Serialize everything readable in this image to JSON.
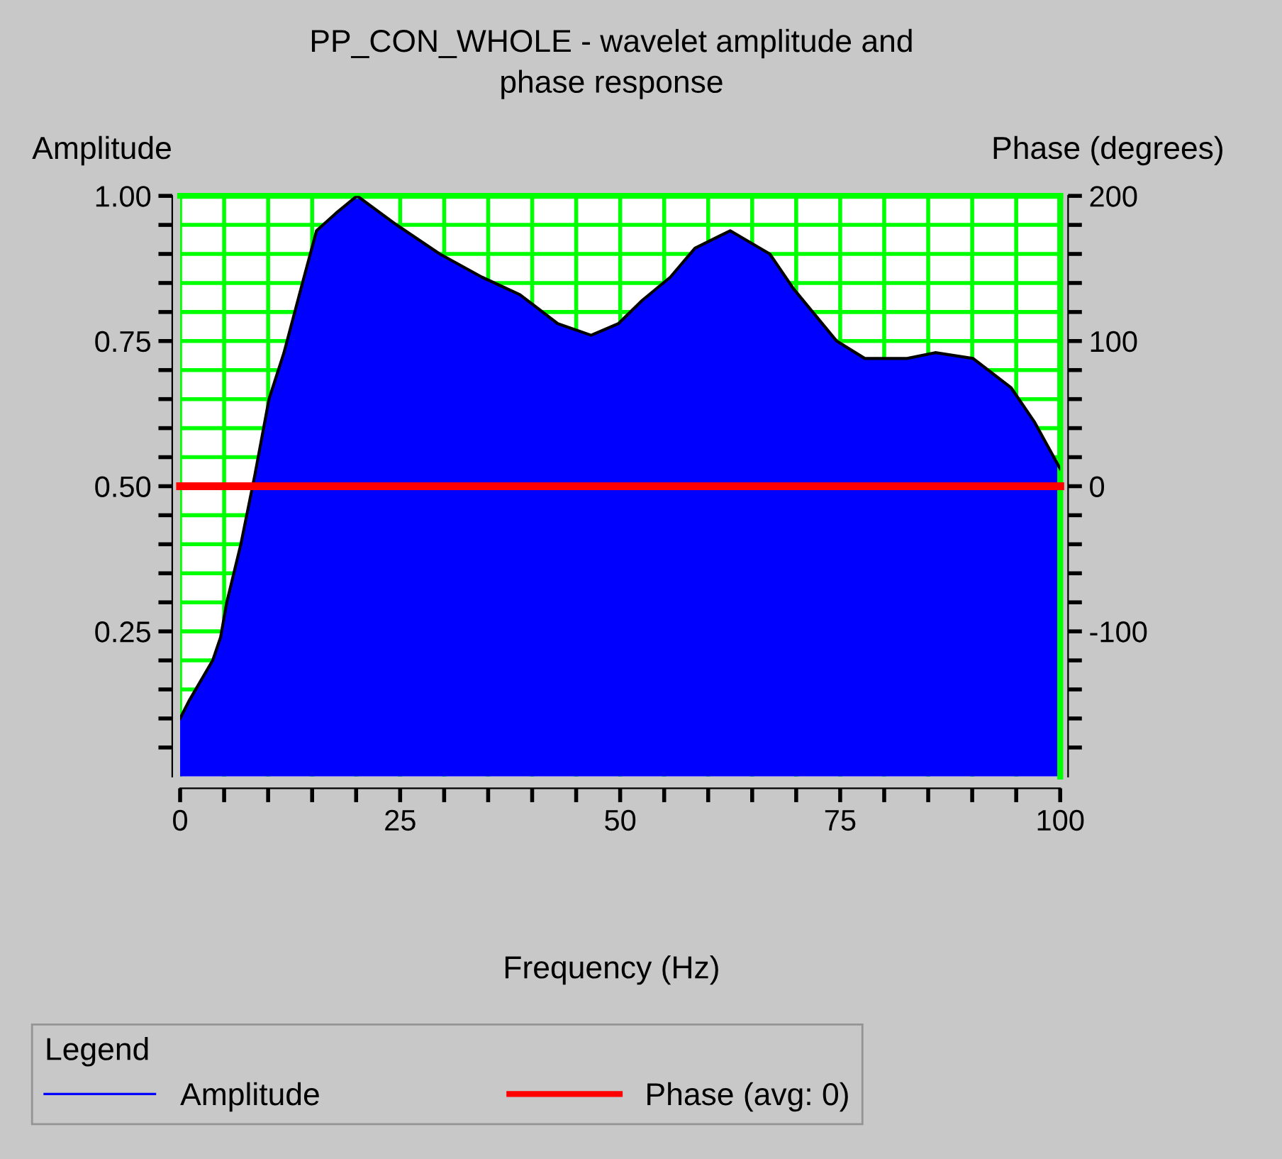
{
  "chart_data": {
    "type": "area",
    "title": "PP_CON_WHOLE - wavelet amplitude and\nphase response",
    "xlabel": "Frequency (Hz)",
    "ylabel": "Amplitude",
    "y2label": "Phase (degrees)",
    "legend_title": "Legend",
    "series": [
      {
        "name": "Amplitude",
        "color": "#0000ff",
        "x": [
          0,
          1.0,
          3.7,
          4.6,
          5.3,
          6.9,
          8.5,
          10.1,
          11.8,
          13.9,
          15.5,
          17.7,
          20.1,
          24.6,
          29.5,
          34.3,
          38.6,
          42.9,
          46.7,
          49.8,
          52.5,
          55.7,
          58.5,
          62.5,
          67.0,
          69.7,
          74.6,
          77.8,
          82.6,
          85.8,
          90.1,
          94.4,
          97.1,
          100
        ],
        "values": [
          0.1,
          0.13,
          0.2,
          0.24,
          0.3,
          0.4,
          0.52,
          0.65,
          0.73,
          0.85,
          0.94,
          0.97,
          1.0,
          0.95,
          0.9,
          0.86,
          0.83,
          0.78,
          0.76,
          0.78,
          0.82,
          0.86,
          0.91,
          0.94,
          0.9,
          0.84,
          0.75,
          0.72,
          0.72,
          0.73,
          0.72,
          0.67,
          0.61,
          0.53
        ]
      },
      {
        "name": "Phase (avg: 0)",
        "type": "line",
        "axis": "y2",
        "color": "#ff0000",
        "x": [
          0,
          100
        ],
        "values": [
          0,
          0
        ]
      }
    ],
    "xlim": [
      0,
      100
    ],
    "xticks": [
      0,
      {
        "value": 5,
        "label": null
      },
      {
        "value": 10,
        "label": null
      },
      {
        "value": 15,
        "label": null
      },
      {
        "value": 20,
        "label": null
      },
      25,
      {
        "value": 30,
        "label": null
      },
      {
        "value": 35,
        "label": null
      },
      {
        "value": 40,
        "label": null
      },
      {
        "value": 45,
        "label": null
      },
      50,
      {
        "value": 55,
        "label": null
      },
      {
        "value": 60,
        "label": null
      },
      {
        "value": 65,
        "label": null
      },
      {
        "value": 70,
        "label": null
      },
      75,
      {
        "value": 80,
        "label": null
      },
      {
        "value": 85,
        "label": null
      },
      {
        "value": 90,
        "label": null
      },
      {
        "value": 95,
        "label": null
      },
      100
    ],
    "ylim": [
      0,
      1.0
    ],
    "yticks": [
      {
        "value": 0.05,
        "label": null
      },
      {
        "value": 0.1,
        "label": null
      },
      {
        "value": 0.15,
        "label": null
      },
      {
        "value": 0.2,
        "label": null
      },
      0.25,
      {
        "value": 0.3,
        "label": null
      },
      {
        "value": 0.35,
        "label": null
      },
      {
        "value": 0.4,
        "label": null
      },
      {
        "value": 0.45,
        "label": null
      },
      {
        "value": 0.5,
        "label": "0.50"
      },
      {
        "value": 0.55,
        "label": null
      },
      {
        "value": 0.6,
        "label": null
      },
      {
        "value": 0.65,
        "label": null
      },
      {
        "value": 0.7,
        "label": null
      },
      0.75,
      {
        "value": 0.8,
        "label": null
      },
      {
        "value": 0.85,
        "label": null
      },
      {
        "value": 0.9,
        "label": null
      },
      {
        "value": 0.95,
        "label": null
      },
      {
        "value": 1.0,
        "label": "1.00"
      }
    ],
    "y2lim": [
      -200,
      200
    ],
    "y2ticks": [
      {
        "value": -180,
        "label": null
      },
      {
        "value": -160,
        "label": null
      },
      {
        "value": -140,
        "label": null
      },
      {
        "value": -120,
        "label": null
      },
      -100,
      {
        "value": -80,
        "label": null
      },
      {
        "value": -60,
        "label": null
      },
      {
        "value": -40,
        "label": null
      },
      {
        "value": -20,
        "label": null
      },
      0,
      {
        "value": 20,
        "label": null
      },
      {
        "value": 40,
        "label": null
      },
      {
        "value": 60,
        "label": null
      },
      {
        "value": 80,
        "label": null
      },
      100,
      {
        "value": 120,
        "label": null
      },
      {
        "value": 140,
        "label": null
      },
      {
        "value": 160,
        "label": null
      },
      {
        "value": 180,
        "label": null
      },
      200
    ],
    "grid": true,
    "legend": "bottom"
  }
}
